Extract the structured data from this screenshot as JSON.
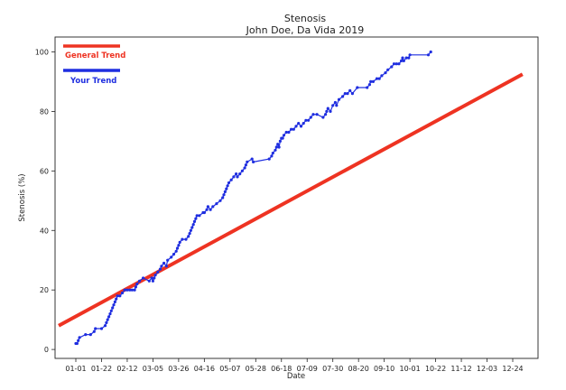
{
  "chart_data": {
    "type": "line",
    "title": "Stenosis",
    "subtitle": "John Doe, Da Vida 2019",
    "xlabel": "Date",
    "ylabel": "Stenosis (%)",
    "x_ticks": [
      "01-01",
      "01-22",
      "02-12",
      "03-05",
      "03-26",
      "04-16",
      "05-07",
      "05-28",
      "06-18",
      "07-09",
      "07-30",
      "08-20",
      "09-10",
      "10-01",
      "10-22",
      "11-12",
      "12-03",
      "12-24"
    ],
    "y_ticks": [
      0,
      20,
      40,
      60,
      80,
      100
    ],
    "ylim": [
      -3,
      105
    ],
    "grid": false,
    "legend_position": "top-left",
    "colors": {
      "general": "#ee3322",
      "user": "#1f2ee0"
    },
    "series": [
      {
        "name": "General Trend",
        "style": "thick-line",
        "points": [
          [
            -14,
            8
          ],
          [
            365,
            92.5
          ]
        ]
      },
      {
        "name": "Your Trend",
        "style": "line-markers",
        "points": [
          [
            0,
            2
          ],
          [
            1,
            2
          ],
          [
            2,
            3
          ],
          [
            3,
            4
          ],
          [
            8,
            5
          ],
          [
            12,
            5
          ],
          [
            15,
            6
          ],
          [
            16,
            7
          ],
          [
            21,
            7
          ],
          [
            24,
            8
          ],
          [
            25,
            9
          ],
          [
            26,
            10
          ],
          [
            27,
            11
          ],
          [
            28,
            12
          ],
          [
            29,
            13
          ],
          [
            30,
            14
          ],
          [
            31,
            15
          ],
          [
            32,
            16
          ],
          [
            33,
            17
          ],
          [
            34,
            18
          ],
          [
            36,
            18
          ],
          [
            38,
            19
          ],
          [
            40,
            20
          ],
          [
            42,
            20
          ],
          [
            44,
            20
          ],
          [
            46,
            20
          ],
          [
            48,
            20
          ],
          [
            49,
            21
          ],
          [
            50,
            22
          ],
          [
            52,
            23
          ],
          [
            55,
            24
          ],
          [
            60,
            23
          ],
          [
            62,
            24
          ],
          [
            63,
            23
          ],
          [
            64,
            24
          ],
          [
            65,
            25
          ],
          [
            67,
            26
          ],
          [
            69,
            27
          ],
          [
            70,
            28
          ],
          [
            72,
            29
          ],
          [
            74,
            28
          ],
          [
            75,
            30
          ],
          [
            78,
            31
          ],
          [
            80,
            32
          ],
          [
            82,
            33
          ],
          [
            83,
            34
          ],
          [
            84,
            35
          ],
          [
            85,
            36
          ],
          [
            87,
            37
          ],
          [
            90,
            37
          ],
          [
            92,
            38
          ],
          [
            93,
            39
          ],
          [
            94,
            40
          ],
          [
            95,
            41
          ],
          [
            96,
            42
          ],
          [
            97,
            43
          ],
          [
            98,
            44
          ],
          [
            99,
            45
          ],
          [
            101,
            45
          ],
          [
            104,
            46
          ],
          [
            105,
            46
          ],
          [
            107,
            47
          ],
          [
            108,
            48
          ],
          [
            110,
            47
          ],
          [
            112,
            48
          ],
          [
            115,
            49
          ],
          [
            118,
            50
          ],
          [
            120,
            51
          ],
          [
            121,
            52
          ],
          [
            122,
            53
          ],
          [
            123,
            54
          ],
          [
            124,
            55
          ],
          [
            125,
            56
          ],
          [
            127,
            57
          ],
          [
            129,
            58
          ],
          [
            131,
            59
          ],
          [
            132,
            58
          ],
          [
            134,
            59
          ],
          [
            136,
            60
          ],
          [
            138,
            61
          ],
          [
            139,
            62
          ],
          [
            140,
            63
          ],
          [
            144,
            64
          ],
          [
            145,
            63
          ],
          [
            158,
            64
          ],
          [
            160,
            65
          ],
          [
            161,
            66
          ],
          [
            163,
            67
          ],
          [
            164,
            68
          ],
          [
            165,
            69
          ],
          [
            166,
            68
          ],
          [
            167,
            70
          ],
          [
            168,
            71
          ],
          [
            169,
            71
          ],
          [
            170,
            72
          ],
          [
            172,
            73
          ],
          [
            174,
            73
          ],
          [
            176,
            74
          ],
          [
            178,
            74
          ],
          [
            180,
            75
          ],
          [
            182,
            76
          ],
          [
            184,
            75
          ],
          [
            186,
            76
          ],
          [
            188,
            77
          ],
          [
            190,
            77
          ],
          [
            192,
            78
          ],
          [
            194,
            79
          ],
          [
            197,
            79
          ],
          [
            202,
            78
          ],
          [
            204,
            79
          ],
          [
            205,
            80
          ],
          [
            206,
            81
          ],
          [
            208,
            80
          ],
          [
            210,
            82
          ],
          [
            212,
            83
          ],
          [
            213,
            82
          ],
          [
            215,
            84
          ],
          [
            218,
            85
          ],
          [
            220,
            86
          ],
          [
            222,
            86
          ],
          [
            224,
            87
          ],
          [
            226,
            86
          ],
          [
            230,
            88
          ],
          [
            238,
            88
          ],
          [
            240,
            89
          ],
          [
            241,
            90
          ],
          [
            243,
            90
          ],
          [
            246,
            91
          ],
          [
            248,
            91
          ],
          [
            250,
            92
          ],
          [
            253,
            93
          ],
          [
            255,
            94
          ],
          [
            258,
            95
          ],
          [
            260,
            96
          ],
          [
            262,
            96
          ],
          [
            264,
            96
          ],
          [
            266,
            97
          ],
          [
            267,
            98
          ],
          [
            268,
            97
          ],
          [
            270,
            98
          ],
          [
            272,
            98
          ],
          [
            273,
            99
          ],
          [
            288,
            99
          ],
          [
            290,
            100
          ]
        ]
      }
    ]
  }
}
